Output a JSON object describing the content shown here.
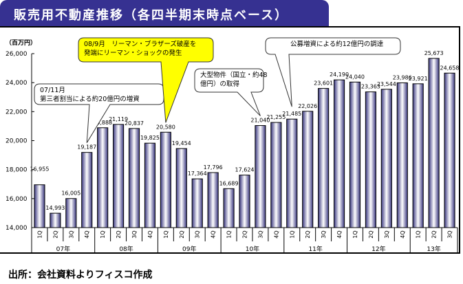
{
  "title": "販売用不動産推移（各四半期末時点ベース）",
  "source": "出所：会社資料よりフィスコ作成",
  "colors": {
    "title_bg": "#363191",
    "bar_dark": "#3a3780",
    "bar_light": "#ffffff",
    "callout_yellow": "#ffff00"
  },
  "chart_data": {
    "type": "bar",
    "title": "販売用不動産推移（各四半期末時点ベース）",
    "ylabel": "（百万円）",
    "xlabel": "",
    "ylim": [
      14000,
      26000
    ],
    "yticks": [
      14000,
      16000,
      18000,
      20000,
      22000,
      24000,
      26000
    ],
    "ytick_labels": [
      "14,000",
      "16,000",
      "18,000",
      "20,000",
      "22,000",
      "24,000",
      "26,000"
    ],
    "grid": false,
    "categories": [
      "1Q",
      "2Q",
      "3Q",
      "4Q",
      "1Q",
      "2Q",
      "3Q",
      "4Q",
      "1Q",
      "2Q",
      "3Q",
      "4Q",
      "1Q",
      "2Q",
      "3Q",
      "4Q",
      "1Q",
      "2Q",
      "3Q",
      "4Q",
      "1Q",
      "2Q",
      "3Q",
      "4Q",
      "1Q",
      "2Q",
      "3Q"
    ],
    "values": [
      16955,
      14993,
      16005,
      19187,
      20888,
      21119,
      20837,
      19825,
      20580,
      19454,
      17364,
      17796,
      16689,
      17624,
      21040,
      21255,
      21485,
      22026,
      23601,
      24190,
      24040,
      23363,
      23544,
      23986,
      23921,
      25673,
      24658
    ],
    "value_labels": [
      "16,955",
      "14,993",
      "16,005",
      "19,187",
      "20,888",
      "21,119",
      "20,837",
      "19,825",
      "20,580",
      "19,454",
      "17,364",
      "17,796",
      "16,689",
      "17,624",
      "21,040",
      "21,255",
      "21,485",
      "22,026",
      "23,601",
      "24,190",
      "24,040",
      "23,363",
      "23,544",
      "23,986",
      "23,921",
      "25,673",
      "24,658"
    ],
    "year_groups": [
      {
        "label": "07年",
        "count": 4
      },
      {
        "label": "08年",
        "count": 4
      },
      {
        "label": "09年",
        "count": 4
      },
      {
        "label": "10年",
        "count": 4
      },
      {
        "label": "11年",
        "count": 4
      },
      {
        "label": "12年",
        "count": 4
      },
      {
        "label": "13年",
        "count": 3
      }
    ],
    "annotations": [
      {
        "lines": [
          "07/11月",
          "第三者割当による約20億円の増資"
        ],
        "target_index": 3,
        "style": "white"
      },
      {
        "lines": [
          "08/9月　リーマン・ブラザーズ破産を",
          "発端にリーマン・ショックの発生"
        ],
        "target_index": 8,
        "style": "yellow"
      },
      {
        "lines": [
          "大型物件（国立・約48",
          "億円）の取得"
        ],
        "target_index": 14,
        "style": "white"
      },
      {
        "lines": [
          "公募増資による約12億円の調達"
        ],
        "target_index": 16,
        "style": "white"
      }
    ]
  }
}
